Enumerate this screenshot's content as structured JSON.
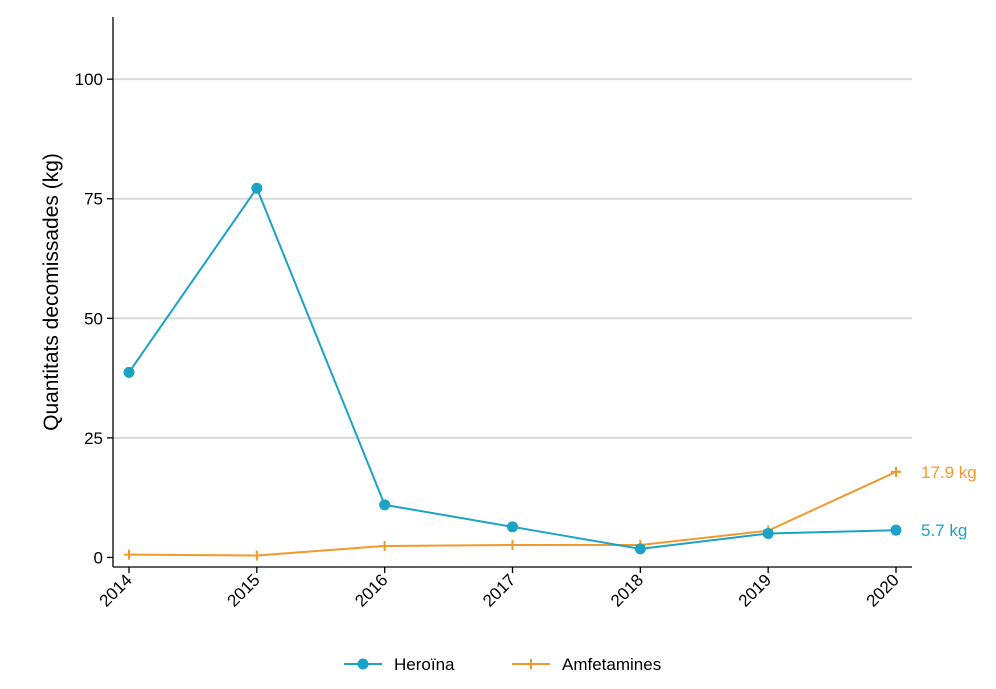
{
  "chart_data": {
    "type": "line",
    "title": "",
    "xlabel": "",
    "ylabel": "Quantitats decomissades (kg)",
    "x": [
      "2014",
      "2015",
      "2016",
      "2017",
      "2018",
      "2019",
      "2020"
    ],
    "ylim": [
      -2,
      113
    ],
    "yticks": [
      0,
      25,
      50,
      75,
      100
    ],
    "grid": true,
    "legend_position": "bottom",
    "series": [
      {
        "name": "Heroïna",
        "marker": "circle",
        "color": "#1BA3C6",
        "values": [
          38.7,
          77.2,
          11.0,
          6.4,
          1.8,
          5.0,
          5.7
        ],
        "end_label": "5.7 kg"
      },
      {
        "name": "Amfetamines",
        "marker": "plus",
        "color": "#F2992E",
        "values": [
          0.6,
          0.4,
          2.4,
          2.6,
          2.6,
          5.6,
          17.9
        ],
        "end_label": "17.9 kg"
      }
    ]
  }
}
